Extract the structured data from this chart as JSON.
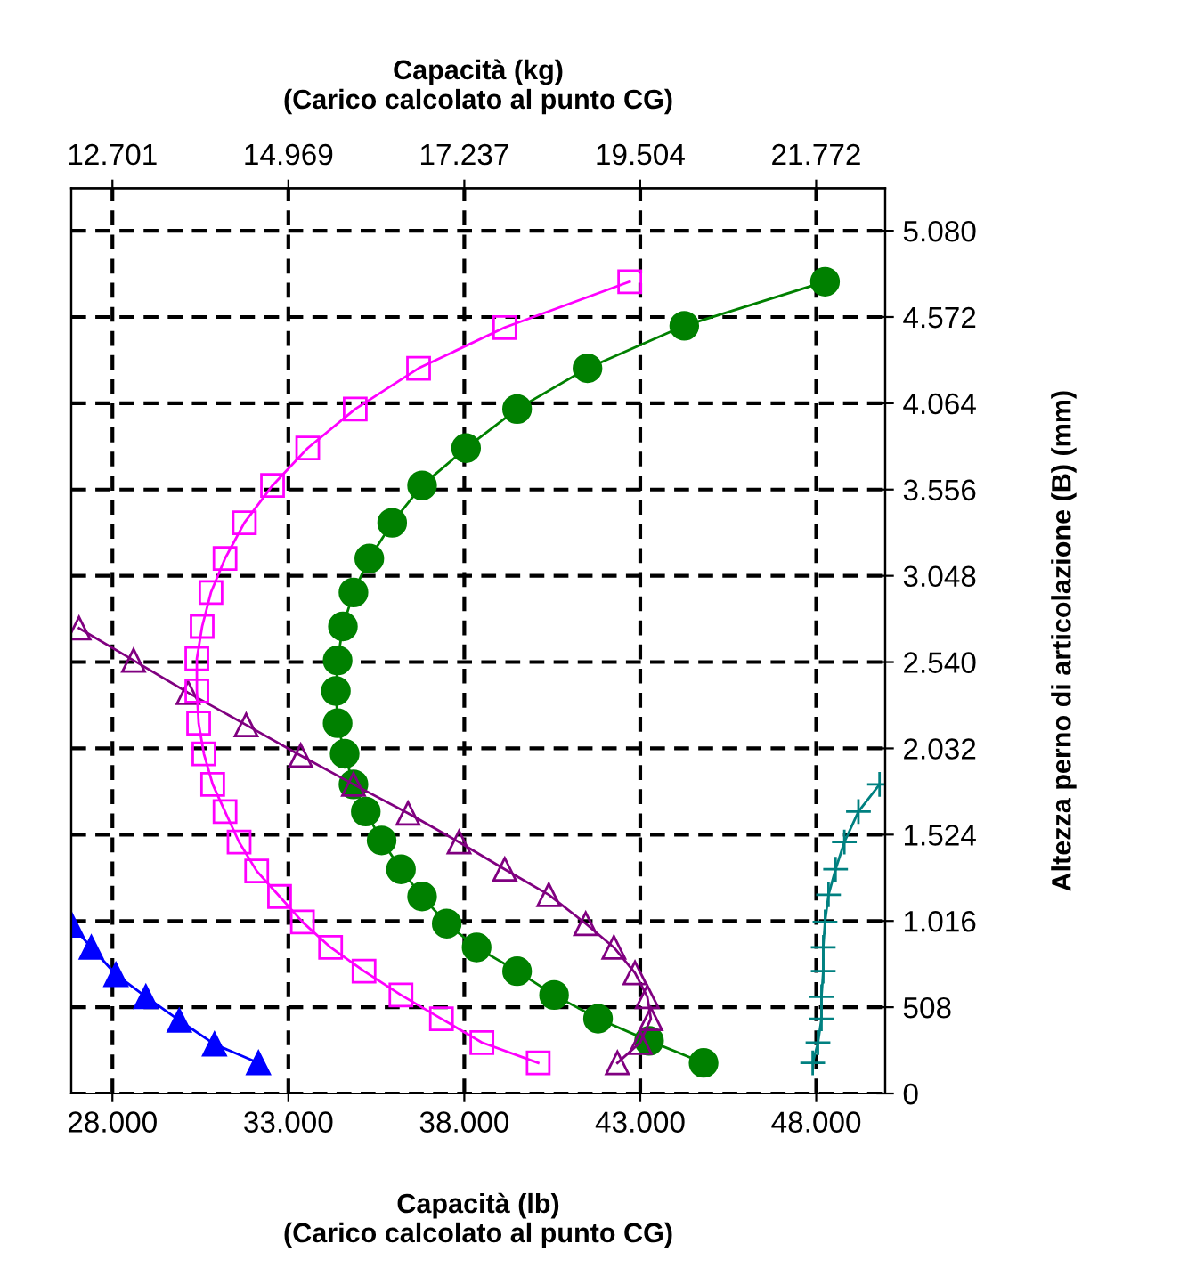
{
  "chart_data": {
    "type": "line",
    "xlabel": "Capacità (lb)\n(Carico calcolato al punto CG)",
    "x2label": "Capacità (kg)\n(Carico calcolato al punto CG)",
    "ylabel": "Altezza perno di articolazione (B) (mm)",
    "xlim": [
      26830,
      49960
    ],
    "xticks": [
      {
        "value": 28000,
        "label": "28.000"
      },
      {
        "value": 33000,
        "label": "33.000"
      },
      {
        "value": 38000,
        "label": "38.000"
      },
      {
        "value": 43000,
        "label": "43.000"
      },
      {
        "value": 48000,
        "label": "48.000"
      }
    ],
    "x2lim": [
      12170,
      22662
    ],
    "x2ticks": [
      {
        "value": 12701,
        "label": "12.701"
      },
      {
        "value": 14969,
        "label": "14.969"
      },
      {
        "value": 17237,
        "label": "17.237"
      },
      {
        "value": 19504,
        "label": "19.504"
      },
      {
        "value": 21772,
        "label": "21.772"
      }
    ],
    "ylim": [
      0,
      5330
    ],
    "yticks": [
      0,
      508,
      {
        "value": 1016,
        "label": "1.016"
      },
      {
        "value": 1524,
        "label": "1.524"
      },
      {
        "value": 2032,
        "label": "2.032"
      },
      {
        "value": 2540,
        "label": "2.540"
      },
      {
        "value": 3048,
        "label": "3.048"
      },
      {
        "value": 3556,
        "label": "3.556"
      },
      {
        "value": 4064,
        "label": "4.064"
      },
      {
        "value": 4572,
        "label": "4.572"
      },
      {
        "value": 5080,
        "label": "5.080"
      }
    ],
    "grid": true,
    "legend": false,
    "line_style": "solid",
    "series": [
      {
        "color": "#0000ff",
        "marker": "triangle",
        "x": [
          26850,
          27400,
          28100,
          28950,
          29900,
          30900,
          32150
        ],
        "values": [
          990,
          860,
          700,
          570,
          430,
          290,
          180
        ]
      },
      {
        "color": "#800080",
        "marker": "triangle",
        "x": [
          27050,
          28600,
          30150,
          31800,
          33350,
          34850,
          36400,
          37850,
          39150,
          40400,
          41450,
          42250,
          42850,
          43200,
          43300,
          43000,
          42350
        ],
        "values": [
          2740,
          2550,
          2360,
          2170,
          1990,
          1820,
          1650,
          1480,
          1320,
          1170,
          1000,
          860,
          710,
          570,
          440,
          300,
          180
        ]
      },
      {
        "color": "#ff00ff",
        "marker": "square",
        "x": [
          42700,
          39150,
          36700,
          34900,
          33550,
          32550,
          31750,
          31200,
          30800,
          30550,
          30400,
          30400,
          30450,
          30600,
          30850,
          31200,
          31600,
          32100,
          32750,
          33400,
          34200,
          35150,
          36200,
          37350,
          38500,
          40100
        ],
        "values": [
          4780,
          4510,
          4270,
          4030,
          3800,
          3580,
          3360,
          3150,
          2950,
          2750,
          2560,
          2370,
          2180,
          2000,
          1820,
          1660,
          1480,
          1310,
          1160,
          1010,
          860,
          720,
          580,
          440,
          300,
          180
        ]
      },
      {
        "color": "#008000",
        "marker": "circle",
        "x": [
          48250,
          44250,
          41500,
          39500,
          38050,
          36800,
          35950,
          35300,
          34850,
          34550,
          34400,
          34350,
          34400,
          34600,
          34850,
          35200,
          35650,
          36200,
          36800,
          37500,
          38350,
          39500,
          40550,
          41800,
          43250,
          44800
        ],
        "values": [
          4780,
          4520,
          4270,
          4030,
          3800,
          3580,
          3360,
          3150,
          2950,
          2750,
          2550,
          2370,
          2180,
          2000,
          1820,
          1660,
          1490,
          1320,
          1160,
          1000,
          860,
          720,
          580,
          440,
          310,
          180
        ]
      },
      {
        "color": "#008080",
        "marker": "cross",
        "x": [
          49800,
          49200,
          48800,
          48550,
          48350,
          48250,
          48200,
          48200,
          48150,
          48150,
          48050,
          47900
        ],
        "values": [
          1820,
          1660,
          1480,
          1320,
          1170,
          1010,
          860,
          720,
          570,
          440,
          300,
          180
        ]
      }
    ]
  }
}
